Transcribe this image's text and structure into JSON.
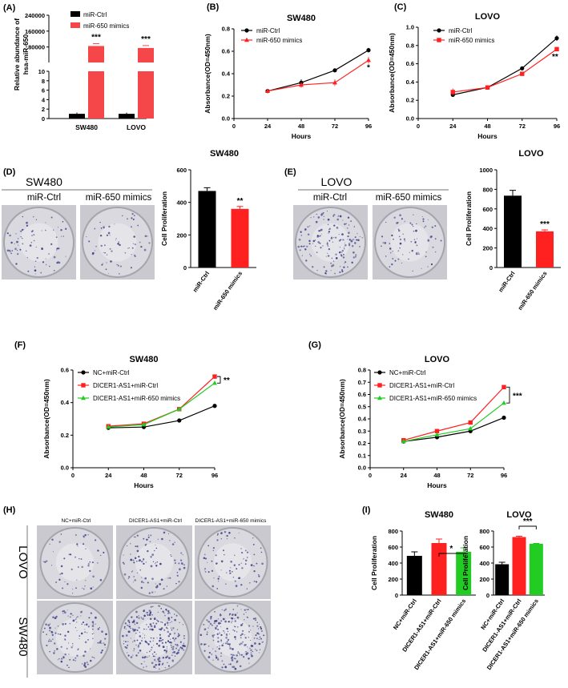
{
  "colors": {
    "black": "#000000",
    "red": "#ff2020",
    "red_bar": "#f5474a",
    "green": "#22cc22",
    "plate_bg": "#d9d9df",
    "dot": "#3d3f86"
  },
  "panels": {
    "A": "(A)",
    "B": "(B)",
    "C": "(C)",
    "D": "(D)",
    "E": "(E)",
    "F": "(F)",
    "G": "(G)",
    "H": "(H)",
    "I": "(I)"
  },
  "chart_data": [
    {
      "id": "A",
      "type": "bar",
      "title": "",
      "ylabel": "Relative abundance of hsa-miR-650",
      "categories": [
        "SW480",
        "LOVO"
      ],
      "series": [
        {
          "name": "miR-Ctrl",
          "values": [
            1,
            1
          ]
        },
        {
          "name": "miR-650 mimics",
          "values": [
            85000,
            75000
          ]
        }
      ],
      "ytick_upper": [
        "240000",
        "160000",
        "80000"
      ],
      "ytick_lower": [
        "10",
        "8",
        "6",
        "4",
        "2",
        "0"
      ],
      "significance": [
        "***",
        "***"
      ]
    },
    {
      "id": "B",
      "type": "line",
      "title": "SW480",
      "xlabel": "Hours",
      "ylabel": "Absorbance(OD=450nm)",
      "x": [
        24,
        48,
        72,
        96
      ],
      "xticks": [
        "0",
        "24",
        "48",
        "72",
        "96"
      ],
      "yticks": [
        "0.0",
        "0.2",
        "0.4",
        "0.6",
        "0.8"
      ],
      "ylim": [
        0,
        0.8
      ],
      "series": [
        {
          "name": "miR-Ctrl",
          "values": [
            0.245,
            0.32,
            0.43,
            0.61
          ]
        },
        {
          "name": "miR-650 mimics",
          "values": [
            0.245,
            0.3,
            0.32,
            0.52
          ]
        }
      ],
      "significance": "*"
    },
    {
      "id": "C",
      "type": "line",
      "title": "LOVO",
      "xlabel": "Hours",
      "ylabel": "Absorbance(OD=450nm)",
      "x": [
        24,
        48,
        72,
        96
      ],
      "xticks": [
        "0",
        "24",
        "48",
        "72",
        "96"
      ],
      "yticks": [
        "0.0",
        "0.2",
        "0.4",
        "0.6",
        "0.8",
        "1.0"
      ],
      "ylim": [
        0,
        1.0
      ],
      "series": [
        {
          "name": "miR-Ctrl",
          "values": [
            0.26,
            0.34,
            0.55,
            0.88
          ]
        },
        {
          "name": "miR-650 mimics",
          "values": [
            0.29,
            0.34,
            0.49,
            0.76
          ]
        }
      ],
      "significance": "**"
    },
    {
      "id": "D",
      "type": "bar",
      "title": "SW480",
      "ylabel": "Cell Proliferation",
      "categories": [
        "miR-Ctrl",
        "miR-650 mimics"
      ],
      "values": [
        470,
        360
      ],
      "errors": [
        20,
        15
      ],
      "yticks": [
        "0",
        "200",
        "400",
        "600"
      ],
      "ylim": [
        0,
        600
      ],
      "significance": "**"
    },
    {
      "id": "E",
      "type": "bar",
      "title": "LOVO",
      "ylabel": "Cell Proliferation",
      "categories": [
        "miR-Ctrl",
        "miR-650 mimics"
      ],
      "values": [
        735,
        370
      ],
      "errors": [
        55,
        15
      ],
      "yticks": [
        "0",
        "200",
        "400",
        "600",
        "800",
        "1000"
      ],
      "ylim": [
        0,
        1000
      ],
      "significance": "***"
    },
    {
      "id": "F",
      "type": "line",
      "title": "SW480",
      "xlabel": "Hours",
      "ylabel": "Absorbance(OD=450nm)",
      "x": [
        24,
        48,
        72,
        96
      ],
      "xticks": [
        "0",
        "24",
        "48",
        "72",
        "96"
      ],
      "yticks": [
        "0.0",
        "0.2",
        "0.4",
        "0.6"
      ],
      "ylim": [
        0,
        0.6
      ],
      "series": [
        {
          "name": "NC+miR-Ctrl",
          "values": [
            0.245,
            0.25,
            0.29,
            0.38
          ]
        },
        {
          "name": "DICER1-AS1+miR-Ctrl",
          "values": [
            0.255,
            0.27,
            0.36,
            0.56
          ]
        },
        {
          "name": "DICER1-AS1+miR-650 mimics",
          "values": [
            0.25,
            0.265,
            0.36,
            0.52
          ]
        }
      ],
      "significance": "**"
    },
    {
      "id": "G",
      "type": "line",
      "title": "LOVO",
      "xlabel": "Hours",
      "ylabel": "Absorbance(OD=450nm)",
      "x": [
        24,
        48,
        72,
        96
      ],
      "xticks": [
        "0",
        "24",
        "48",
        "72",
        "96"
      ],
      "yticks": [
        "0.0",
        "0.1",
        "0.2",
        "0.3",
        "0.4",
        "0.5",
        "0.6",
        "0.7",
        "0.8"
      ],
      "ylim": [
        0,
        0.8
      ],
      "series": [
        {
          "name": "NC+miR-Ctrl",
          "values": [
            0.215,
            0.25,
            0.3,
            0.41
          ]
        },
        {
          "name": "DICER1-AS1+miR-Ctrl",
          "values": [
            0.225,
            0.3,
            0.37,
            0.66
          ]
        },
        {
          "name": "DICER1-AS1+miR-650 mimics",
          "values": [
            0.215,
            0.27,
            0.32,
            0.53
          ]
        }
      ],
      "significance": "***"
    },
    {
      "id": "I1",
      "type": "bar",
      "title": "SW480",
      "ylabel": "Cell Proliferation",
      "categories": [
        "NC+miR-Ctrl",
        "DICER1-AS1+miR-Ctrl",
        "DICER1-AS1+miR-650 mimics"
      ],
      "values": [
        490,
        650,
        540
      ],
      "errors": [
        50,
        50,
        50
      ],
      "yticks": [
        "0",
        "200",
        "400",
        "600",
        "800"
      ],
      "ylim": [
        0,
        800
      ],
      "significance": "*"
    },
    {
      "id": "I2",
      "type": "bar",
      "title": "LOVO",
      "ylabel": "Cell Proliferation",
      "categories": [
        "NC+miR-Ctrl",
        "DICER1-AS1+miR-Ctrl",
        "DICER1-AS1+miR-650 mimics"
      ],
      "values": [
        385,
        725,
        640
      ],
      "errors": [
        25,
        10,
        5
      ],
      "yticks": [
        "0",
        "200",
        "400",
        "600",
        "800"
      ],
      "ylim": [
        0,
        800
      ],
      "significance": "***"
    }
  ],
  "images": {
    "D": {
      "label": "SW480",
      "columns": [
        "miR-Ctrl",
        "miR-650 mimics"
      ],
      "density": [
        0.45,
        0.38
      ]
    },
    "E": {
      "label": "LOVO",
      "columns": [
        "miR-Ctrl",
        "miR-650 mimics"
      ],
      "density": [
        0.9,
        0.45
      ]
    },
    "H": {
      "columns": [
        "NC+miR-Ctrl",
        "DICER1-AS1+miR-Ctrl",
        "DICER1-AS1+miR-650 mimics"
      ],
      "rows": [
        "LOVO",
        "SW480"
      ],
      "density": [
        [
          0.35,
          0.6,
          0.5
        ],
        [
          0.8,
          1.6,
          1.3
        ]
      ]
    }
  }
}
